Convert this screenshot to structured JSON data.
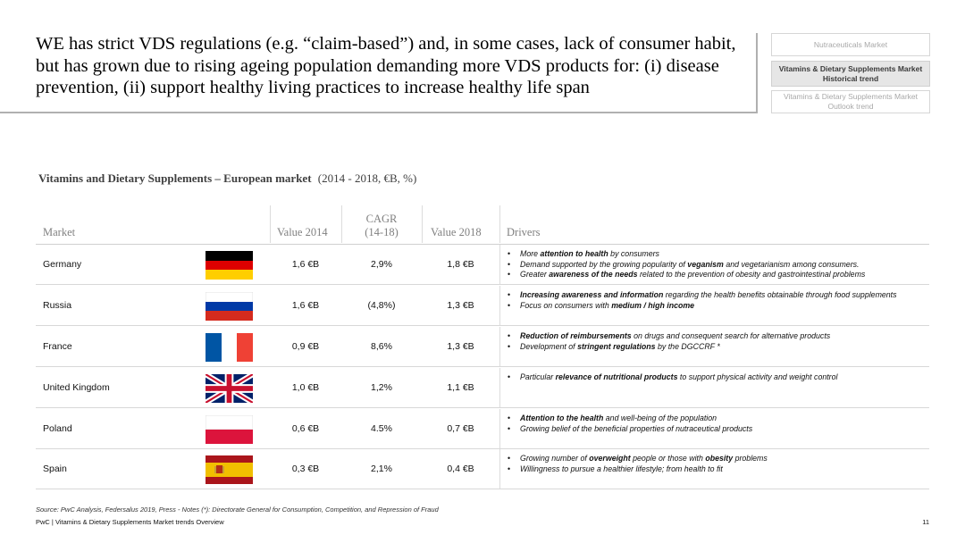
{
  "title": "WE has strict VDS regulations (e.g. “claim-based”) and, in some cases, lack of consumer habit, but has grown due to rising ageing population demanding more VDS products for: (i) disease prevention, (ii) support healthy living practices to increase healthy life span",
  "nav": {
    "item1": "Nutraceuticals Market",
    "item2_line1": "Vitamins & Dietary Supplements Market",
    "item2_line2": "Historical trend",
    "item3_line1": "Vitamins & Dietary Supplements Market",
    "item3_line2": "Outlook trend"
  },
  "subtitle": {
    "bold": "Vitamins and Dietary Supplements – European market",
    "light": "(2014 - 2018, €B, %)"
  },
  "table": {
    "headers": {
      "market": "Market",
      "value2014": "Value 2014",
      "cagr_line1": "CAGR",
      "cagr_line2": "(14-18)",
      "value2018": "Value 2018",
      "drivers": "Drivers"
    },
    "rows": [
      {
        "country": "Germany",
        "flag": "germany-flag",
        "value2014": "1,6 €B",
        "cagr": "2,9%",
        "value2018": "1,8 €B",
        "drivers": [
          {
            "pre": "More ",
            "bold": "attention to health",
            "post": " by consumers"
          },
          {
            "pre": "Demand supported by the growing popularity of ",
            "bold": "veganism",
            "post": " and vegetarianism among consumers."
          },
          {
            "pre": "Greater ",
            "bold": "awareness of the needs",
            "post": " related to the prevention of obesity and gastrointestinal problems"
          }
        ]
      },
      {
        "country": "Russia",
        "flag": "russia-flag",
        "value2014": "1,6 €B",
        "cagr": "(4,8%)",
        "value2018": "1,3 €B",
        "drivers": [
          {
            "pre": "",
            "bold": "Increasing awareness and information",
            "post": " regarding the health benefits obtainable through food supplements"
          },
          {
            "pre": "Focus on consumers with ",
            "bold": "medium / high income",
            "post": ""
          }
        ]
      },
      {
        "country": "France",
        "flag": "france-flag",
        "value2014": "0,9 €B",
        "cagr": "8,6%",
        "value2018": "1,3 €B",
        "drivers": [
          {
            "pre": "",
            "bold": "Reduction of reimbursements",
            "post": " on drugs and consequent search for alternative products"
          },
          {
            "pre": "Development of ",
            "bold": "stringent regulations",
            "post": " by the DGCCRF *"
          }
        ]
      },
      {
        "country": "United Kingdom",
        "flag": "uk-flag",
        "value2014": "1,0 €B",
        "cagr": "1,2%",
        "value2018": "1,1 €B",
        "drivers": [
          {
            "pre": "Particular ",
            "bold": "relevance of nutritional products",
            "post": " to support physical activity and weight control"
          }
        ]
      },
      {
        "country": "Poland",
        "flag": "poland-flag",
        "value2014": "0,6 €B",
        "cagr": "4.5%",
        "value2018": "0,7 €B",
        "drivers": [
          {
            "pre": "",
            "bold": "Attention to the health",
            "post": " and well-being of the population"
          },
          {
            "pre": "Growing belief of the beneficial properties of nutraceutical products",
            "bold": "",
            "post": ""
          }
        ]
      },
      {
        "country": "Spain",
        "flag": "spain-flag",
        "value2014": "0,3 €B",
        "cagr": "2,1%",
        "value2018": "0,4 €B",
        "drivers": [
          {
            "pre": "Growing number of ",
            "bold": "overweight",
            "post": " people or those with "
          },
          {
            "pre": "Willingness to pursue a healthier lifestyle; from health to fit",
            "bold": "",
            "post": ""
          }
        ]
      }
    ]
  },
  "spain_extra": {
    "bold": "obesity",
    "post": " problems"
  },
  "source": "Source: PwC Analysis, Federsalus 2019, Press - Notes (*): Directorate General for Consumption, Competition, and Repression of Fraud",
  "footer": "PwC | Vitamins & Dietary Supplements Market trends Overview",
  "page_number": "11",
  "colors": {
    "germany": [
      "#000000",
      "#dd0000",
      "#ffce00"
    ],
    "russia": [
      "#ffffff",
      "#0039a6",
      "#d52b1e"
    ],
    "france": [
      "#0055a4",
      "#ffffff",
      "#ef4135"
    ],
    "uk": [
      "#012169",
      "#ffffff",
      "#c8102e"
    ],
    "poland": [
      "#ffffff",
      "#dc143c"
    ],
    "spain": [
      "#aa151b",
      "#f1bf00"
    ]
  }
}
